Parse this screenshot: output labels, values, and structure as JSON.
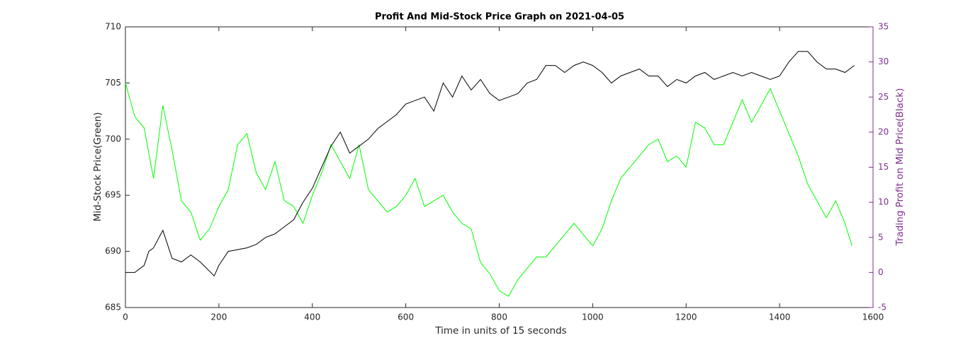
{
  "chart_data": {
    "type": "line",
    "title": "Profit And Mid-Stock Price Graph on 2021-04-05",
    "xlabel": "Time in units of 15 seconds",
    "ylabel": "Mid-Stock Price(Green)",
    "y2label": "Trading Profit on Mid Price(Black)",
    "y2color": "#7e2f8e",
    "xlim": [
      0,
      1600
    ],
    "xticks": [
      0,
      200,
      400,
      600,
      800,
      1000,
      1200,
      1400,
      1600
    ],
    "ylim": [
      685,
      710
    ],
    "yticks": [
      685,
      690,
      695,
      700,
      705,
      710
    ],
    "y2lim": [
      -5,
      35
    ],
    "y2ticks": [
      -5,
      0,
      5,
      10,
      15,
      20,
      25,
      30,
      35
    ],
    "series": [
      {
        "color": "#00ff00",
        "axis": "y",
        "x": [
          0,
          20,
          40,
          60,
          80,
          100,
          120,
          140,
          160,
          180,
          200,
          220,
          240,
          260,
          280,
          300,
          320,
          340,
          360,
          380,
          400,
          420,
          440,
          460,
          480,
          500,
          520,
          540,
          560,
          580,
          600,
          620,
          640,
          660,
          680,
          700,
          720,
          740,
          760,
          780,
          800,
          820,
          840,
          860,
          880,
          900,
          920,
          940,
          960,
          980,
          1000,
          1020,
          1040,
          1060,
          1080,
          1100,
          1120,
          1140,
          1160,
          1180,
          1200,
          1220,
          1240,
          1260,
          1280,
          1300,
          1320,
          1340,
          1360,
          1380,
          1400,
          1420,
          1440,
          1460,
          1480,
          1500,
          1520,
          1540,
          1555
        ],
        "values": [
          705,
          702,
          701,
          696.5,
          703,
          699,
          694.5,
          693.5,
          691,
          692,
          694,
          695.5,
          699.5,
          700.5,
          697,
          695.5,
          698,
          694.5,
          694,
          692.5,
          695,
          697,
          699.5,
          698,
          696.5,
          699.5,
          695.5,
          694.5,
          693.5,
          694,
          695,
          696.5,
          694,
          694.5,
          695,
          693.5,
          692.5,
          692,
          689,
          688,
          686.5,
          686,
          687.5,
          688.5,
          689.5,
          689.5,
          690.5,
          691.5,
          692.5,
          691.5,
          690.5,
          692,
          694.5,
          696.5,
          697.5,
          698.5,
          699.5,
          700,
          698,
          698.5,
          697.5,
          701.5,
          701,
          699.5,
          699.5,
          701.5,
          703.5,
          701.5,
          703,
          704.5,
          702.5,
          700.5,
          698.5,
          696,
          694.5,
          693,
          694.5,
          692.5,
          690.5
        ]
      },
      {
        "color": "#000000",
        "axis": "y2",
        "x": [
          0,
          20,
          40,
          50,
          60,
          80,
          100,
          120,
          140,
          160,
          190,
          200,
          220,
          260,
          280,
          300,
          320,
          340,
          360,
          380,
          400,
          420,
          440,
          460,
          480,
          500,
          520,
          540,
          560,
          580,
          600,
          620,
          640,
          660,
          680,
          700,
          720,
          740,
          760,
          780,
          800,
          820,
          840,
          860,
          880,
          900,
          920,
          940,
          960,
          980,
          1000,
          1020,
          1040,
          1060,
          1080,
          1100,
          1120,
          1140,
          1160,
          1180,
          1200,
          1220,
          1240,
          1260,
          1280,
          1300,
          1320,
          1340,
          1360,
          1380,
          1400,
          1420,
          1440,
          1460,
          1480,
          1500,
          1520,
          1540,
          1560
        ],
        "values": [
          0,
          0,
          1,
          3,
          3.5,
          6,
          2,
          1.5,
          2.5,
          1.5,
          -0.5,
          1,
          3,
          3.5,
          4,
          5,
          5.5,
          6.5,
          7.5,
          10,
          12,
          15,
          18,
          20,
          17,
          18,
          19,
          20.5,
          21.5,
          22.5,
          24,
          24.5,
          25,
          23,
          27,
          25,
          28,
          26,
          27.5,
          25.5,
          24.5,
          25,
          25.5,
          27,
          27.5,
          29.5,
          29.5,
          28.5,
          29.5,
          30,
          29.5,
          28.5,
          27,
          28,
          28.5,
          29,
          28,
          28,
          26.5,
          27.5,
          27,
          28,
          28.5,
          27.5,
          28,
          28.5,
          28,
          28.5,
          28,
          27.5,
          28,
          30,
          31.5,
          31.5,
          30,
          29,
          29,
          28.5,
          29.5
        ]
      }
    ]
  }
}
